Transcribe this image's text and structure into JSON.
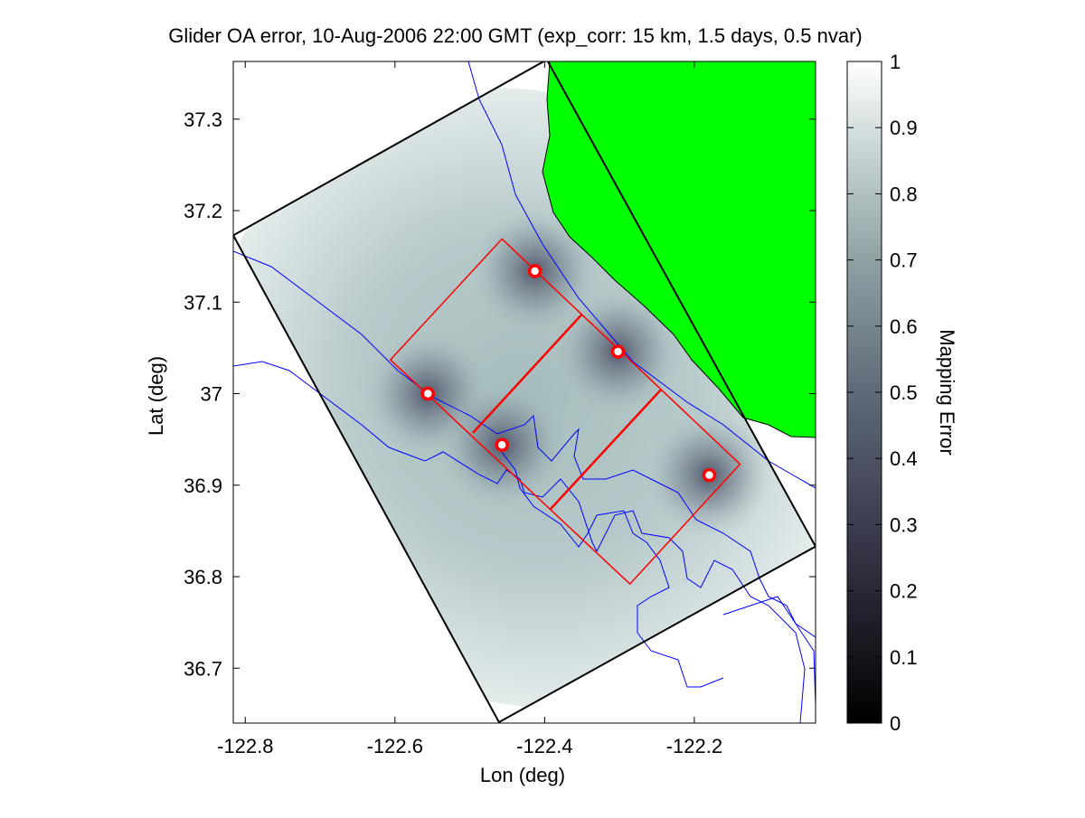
{
  "chart_data": {
    "type": "heatmap",
    "title": "Glider OA error, 10-Aug-2006 22:00 GMT (exp_corr: 15 km, 1.5 days, 0.5 nvar)",
    "xlabel": "Lon (deg)",
    "ylabel": "Lat (deg)",
    "xlim": [
      -122.816,
      -122.038
    ],
    "ylim": [
      36.64,
      37.363
    ],
    "xticks": [
      -122.8,
      -122.6,
      -122.4,
      -122.2
    ],
    "xtick_labels": [
      "-122.8",
      "-122.6",
      "-122.4",
      "-122.2"
    ],
    "yticks": [
      36.7,
      36.8,
      36.9,
      37.0,
      37.1,
      37.2,
      37.3
    ],
    "ytick_labels": [
      "36.7",
      "36.8",
      "36.9",
      "37",
      "37.1",
      "37.2",
      "37.3"
    ],
    "colorbar": {
      "label": "Mapping Error",
      "range": [
        0,
        1
      ],
      "ticks": [
        0,
        0.1,
        0.2,
        0.3,
        0.4,
        0.5,
        0.6,
        0.7,
        0.8,
        0.9,
        1
      ],
      "tick_labels": [
        "0",
        "0.1",
        "0.2",
        "0.3",
        "0.4",
        "0.5",
        "0.6",
        "0.7",
        "0.8",
        "0.9",
        "1"
      ]
    },
    "domain_corners": [
      [
        -122.397,
        37.365
      ],
      [
        -122.038,
        36.833
      ],
      [
        -122.461,
        36.641
      ],
      [
        -122.816,
        37.173
      ]
    ],
    "grid_outline": [
      [
        -122.457,
        37.169
      ],
      [
        -122.139,
        36.923
      ],
      [
        -122.286,
        36.792
      ],
      [
        -122.606,
        37.037
      ]
    ],
    "grid_dividers": [
      [
        [
          -122.351,
          37.086
        ],
        [
          -122.496,
          36.957
        ]
      ],
      [
        [
          -122.245,
          37.004
        ],
        [
          -122.392,
          36.874
        ]
      ]
    ],
    "gliders": [
      {
        "lon": -122.413,
        "lat": 37.134
      },
      {
        "lon": -122.302,
        "lat": 37.046
      },
      {
        "lon": -122.556,
        "lat": 37.0
      },
      {
        "lon": -122.457,
        "lat": 36.944
      },
      {
        "lon": -122.18,
        "lat": 36.911
      }
    ],
    "colors": {
      "land": "#00ff00",
      "grid": "#ff0000",
      "contour": "#0000ff",
      "domain": "#000000",
      "glider": "#ff0000"
    }
  }
}
